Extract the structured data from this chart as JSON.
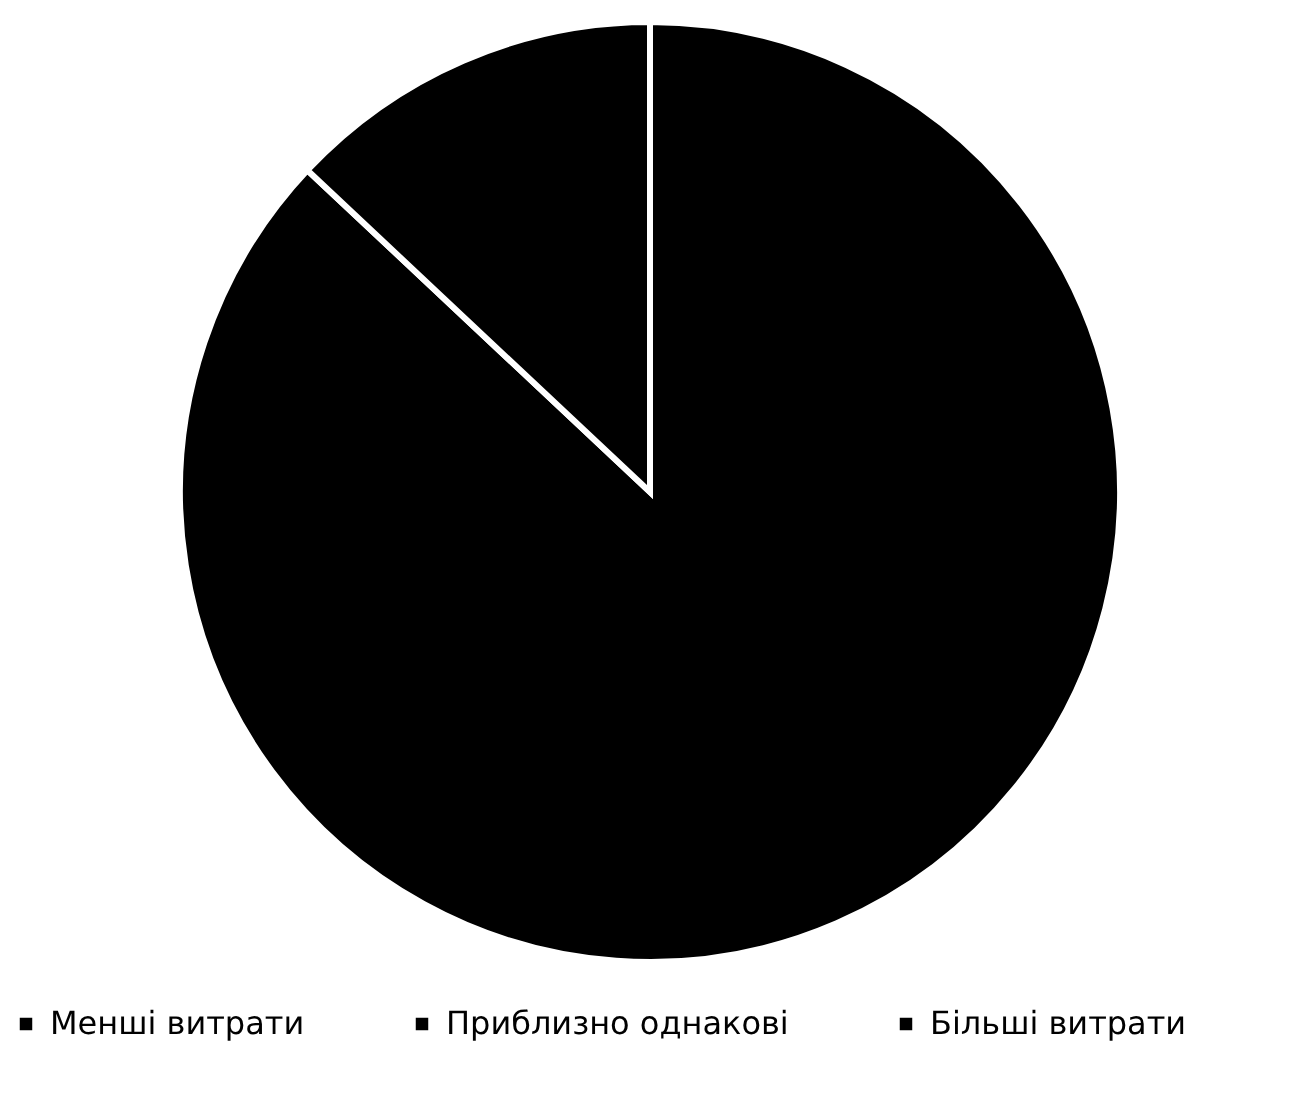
{
  "chart_data": {
    "type": "pie",
    "categories": [
      "Менші витрати",
      "Приблизно однакові",
      "Більші витрати"
    ],
    "values": [
      87,
      13,
      0
    ],
    "colors": [
      "#000000",
      "#000000",
      "#000000"
    ],
    "legend": "bottom"
  }
}
